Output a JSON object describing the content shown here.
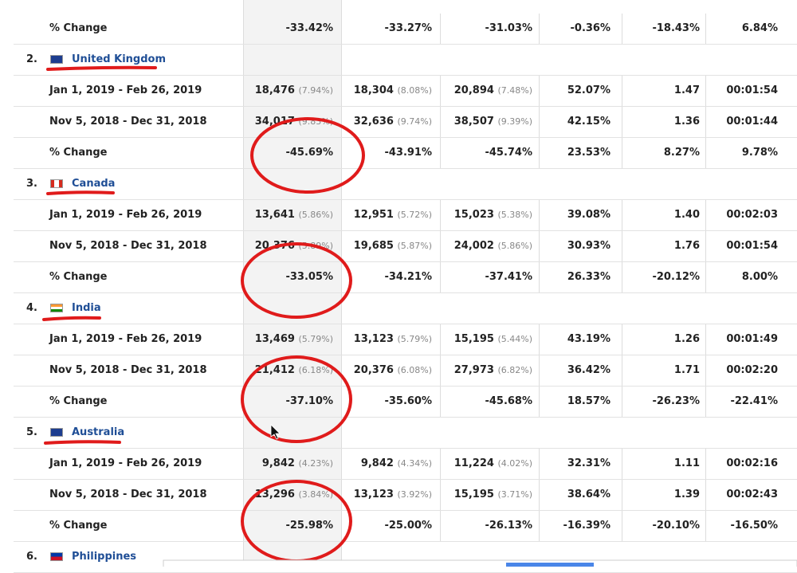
{
  "top_row": {
    "label": "% Change",
    "cells": [
      "-33.42%",
      "-33.27%",
      "-31.03%",
      "-0.36%",
      "-18.43%",
      "6.84%"
    ]
  },
  "countries": [
    {
      "rank": "2.",
      "name": "United Kingdom",
      "rows": [
        {
          "label": "Jan 1, 2019 - Feb 26, 2019",
          "cells": [
            [
              "18,476",
              "(7.94%)"
            ],
            [
              "18,304",
              "(8.08%)"
            ],
            [
              "20,894",
              "(7.48%)"
            ],
            "52.07%",
            "1.47",
            "00:01:54"
          ]
        },
        {
          "label": "Nov 5, 2018 - Dec 31, 2018",
          "cells": [
            [
              "34,017",
              "(9.83%)"
            ],
            [
              "32,636",
              "(9.74%)"
            ],
            [
              "38,507",
              "(9.39%)"
            ],
            "42.15%",
            "1.36",
            "00:01:44"
          ]
        },
        {
          "label": "% Change",
          "cells": [
            "-45.69%",
            "-43.91%",
            "-45.74%",
            "23.53%",
            "8.27%",
            "9.78%"
          ]
        }
      ]
    },
    {
      "rank": "3.",
      "name": "Canada",
      "rows": [
        {
          "label": "Jan 1, 2019 - Feb 26, 2019",
          "cells": [
            [
              "13,641",
              "(5.86%)"
            ],
            [
              "12,951",
              "(5.72%)"
            ],
            [
              "15,023",
              "(5.38%)"
            ],
            "39.08%",
            "1.40",
            "00:02:03"
          ]
        },
        {
          "label": "Nov 5, 2018 - Dec 31, 2018",
          "cells": [
            [
              "20,376",
              "(5.89%)"
            ],
            [
              "19,685",
              "(5.87%)"
            ],
            [
              "24,002",
              "(5.86%)"
            ],
            "30.93%",
            "1.76",
            "00:01:54"
          ]
        },
        {
          "label": "% Change",
          "cells": [
            "-33.05%",
            "-34.21%",
            "-37.41%",
            "26.33%",
            "-20.12%",
            "8.00%"
          ]
        }
      ]
    },
    {
      "rank": "4.",
      "name": "India",
      "rows": [
        {
          "label": "Jan 1, 2019 - Feb 26, 2019",
          "cells": [
            [
              "13,469",
              "(5.79%)"
            ],
            [
              "13,123",
              "(5.79%)"
            ],
            [
              "15,195",
              "(5.44%)"
            ],
            "43.19%",
            "1.26",
            "00:01:49"
          ]
        },
        {
          "label": "Nov 5, 2018 - Dec 31, 2018",
          "cells": [
            [
              "21,412",
              "(6.18%)"
            ],
            [
              "20,376",
              "(6.08%)"
            ],
            [
              "27,973",
              "(6.82%)"
            ],
            "36.42%",
            "1.71",
            "00:02:20"
          ]
        },
        {
          "label": "% Change",
          "cells": [
            "-37.10%",
            "-35.60%",
            "-45.68%",
            "18.57%",
            "-26.23%",
            "-22.41%"
          ]
        }
      ]
    },
    {
      "rank": "5.",
      "name": "Australia",
      "rows": [
        {
          "label": "Jan 1, 2019 - Feb 26, 2019",
          "cells": [
            [
              "9,842",
              "(4.23%)"
            ],
            [
              "9,842",
              "(4.34%)"
            ],
            [
              "11,224",
              "(4.02%)"
            ],
            "32.31%",
            "1.11",
            "00:02:16"
          ]
        },
        {
          "label": "Nov 5, 2018 - Dec 31, 2018",
          "cells": [
            [
              "13,296",
              "(3.84%)"
            ],
            [
              "13,123",
              "(3.92%)"
            ],
            [
              "15,195",
              "(3.71%)"
            ],
            "38.64%",
            "1.39",
            "00:02:43"
          ]
        },
        {
          "label": "% Change",
          "cells": [
            "-25.98%",
            "-25.00%",
            "-26.13%",
            "-16.39%",
            "-20.10%",
            "-16.50%"
          ]
        }
      ]
    },
    {
      "rank": "6.",
      "name": "Philippines",
      "rows": []
    }
  ]
}
